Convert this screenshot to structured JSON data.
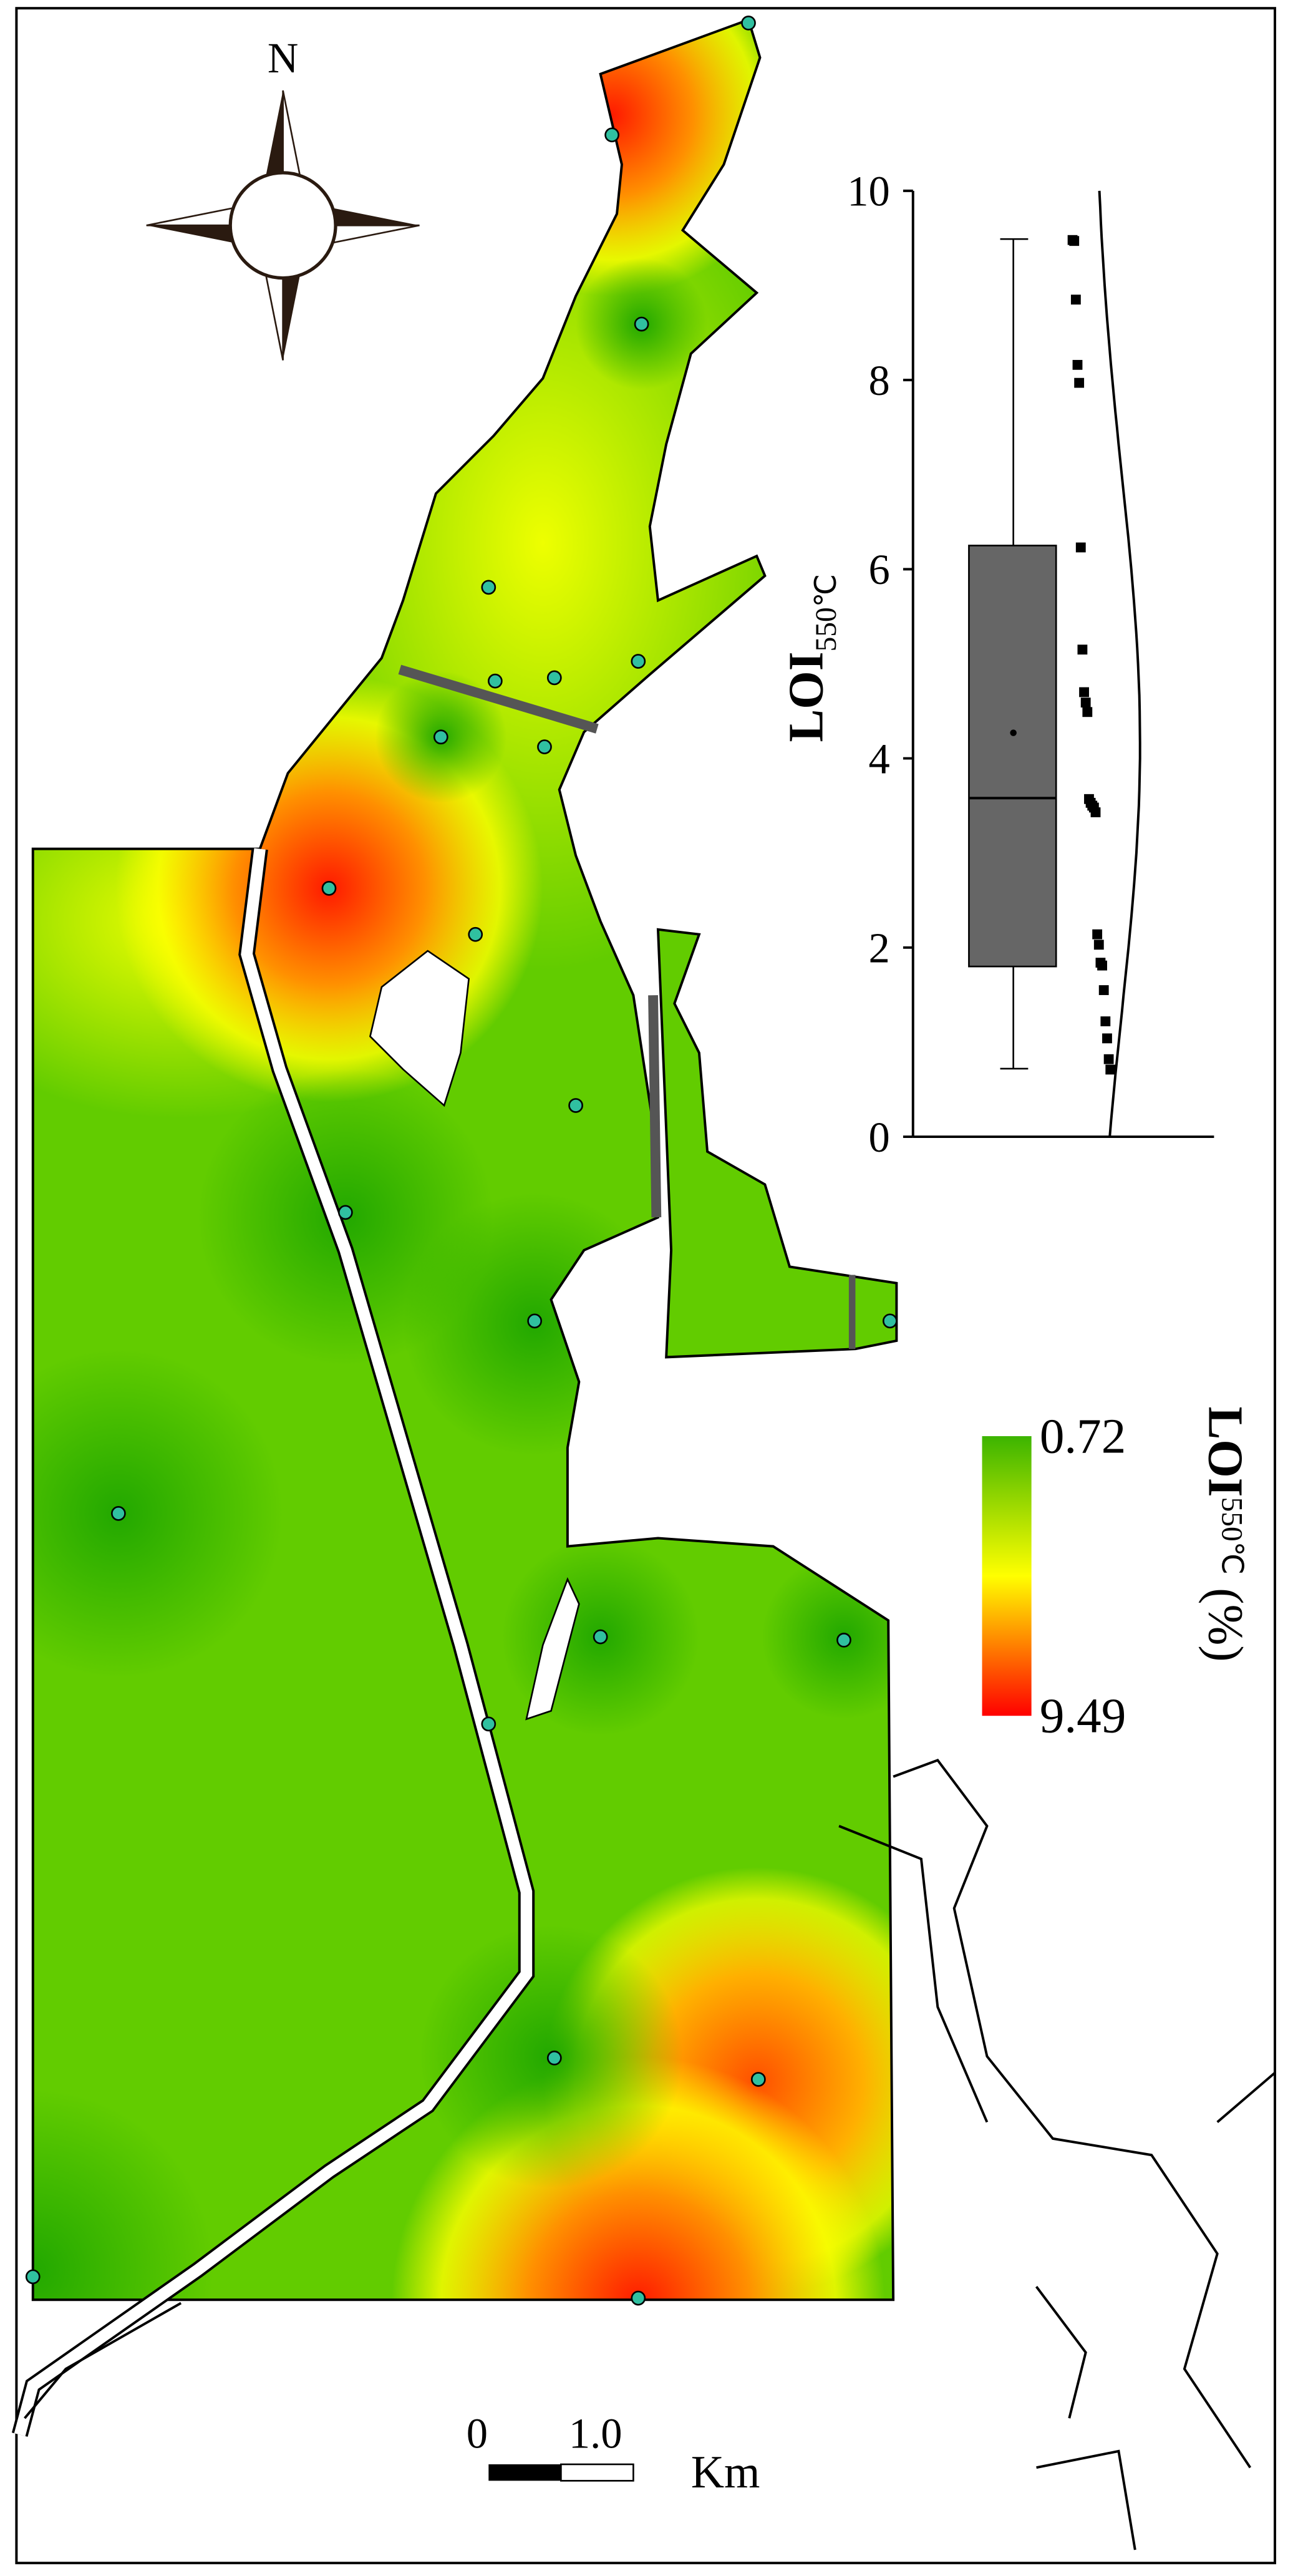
{
  "map": {
    "north": "N",
    "scale_bar": {
      "start": "0",
      "end": "1.0",
      "unit": "Km"
    },
    "legend": {
      "title_main": "LOI",
      "title_sub": "550℃",
      "title_unit": "(%)",
      "top_label": "0.72",
      "bottom_label": "9.49",
      "top_color": "#3cb400",
      "mid_color": "#ffff00",
      "bottom_color": "#ff0000"
    }
  },
  "chart_data": {
    "type": "box",
    "ylabel_main": "LOI",
    "ylabel_sub": "550℃",
    "ylim": [
      0,
      10
    ],
    "yticks": [
      0,
      2,
      4,
      6,
      8,
      10
    ],
    "box": {
      "min": 0.72,
      "q1": 1.8,
      "median": 3.58,
      "q3": 6.25,
      "max": 9.49,
      "mean": 4.27
    },
    "box_color": "#666666",
    "points": [
      9.48,
      9.47,
      8.85,
      8.16,
      7.97,
      6.23,
      5.15,
      4.7,
      4.59,
      4.49,
      3.57,
      3.53,
      3.5,
      3.48,
      3.43,
      2.14,
      2.03,
      1.84,
      1.81,
      1.55,
      1.22,
      1.04,
      0.82,
      0.71
    ]
  }
}
